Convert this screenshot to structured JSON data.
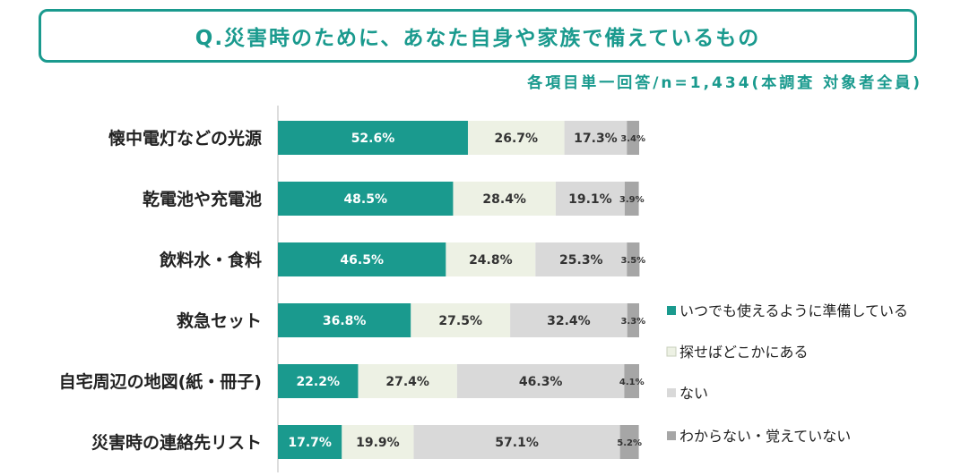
{
  "title": "Q.災害時のために、あなた自身や家族で備えているもの",
  "subtitle": "各項目単一回答/n=1,434(本調査 対象者全員)",
  "chart_data": {
    "type": "bar",
    "orientation": "horizontal",
    "stacked": true,
    "percent_stacked": true,
    "categories": [
      "懐中電灯などの光源",
      "乾電池や充電池",
      "飲料水・食料",
      "救急セット",
      "自宅周辺の地図(紙・冊子)",
      "災害時の連絡先リスト"
    ],
    "series": [
      {
        "name": "いつでも使えるように準備している",
        "color": "#1a9a8e",
        "values": [
          52.6,
          48.5,
          46.5,
          36.8,
          22.2,
          17.7
        ],
        "labels": [
          "52.6%",
          "48.5%",
          "46.5%",
          "36.8%",
          "22.2%",
          "17.7%"
        ]
      },
      {
        "name": "探せばどこかにある",
        "color": "#edf1e4",
        "values": [
          26.7,
          28.4,
          24.8,
          27.5,
          27.4,
          19.9
        ],
        "labels": [
          "26.7%",
          "28.4%",
          "24.8%",
          "27.5%",
          "27.4%",
          "19.9%"
        ]
      },
      {
        "name": "ない",
        "color": "#d9d9d9",
        "values": [
          17.3,
          19.1,
          25.3,
          32.4,
          46.3,
          57.1
        ],
        "labels": [
          "17.3%",
          "19.1%",
          "25.3%",
          "32.4%",
          "46.3%",
          "57.1%"
        ]
      },
      {
        "name": "わからない・覚えていない",
        "color": "#a6a6a6",
        "values": [
          3.4,
          3.9,
          3.5,
          3.3,
          4.1,
          5.2
        ],
        "labels": [
          "3.4%",
          "3.9%",
          "3.5%",
          "3.3%",
          "4.1%",
          "5.2%"
        ]
      }
    ],
    "xlim": [
      0,
      100
    ],
    "legend_position": "right"
  }
}
